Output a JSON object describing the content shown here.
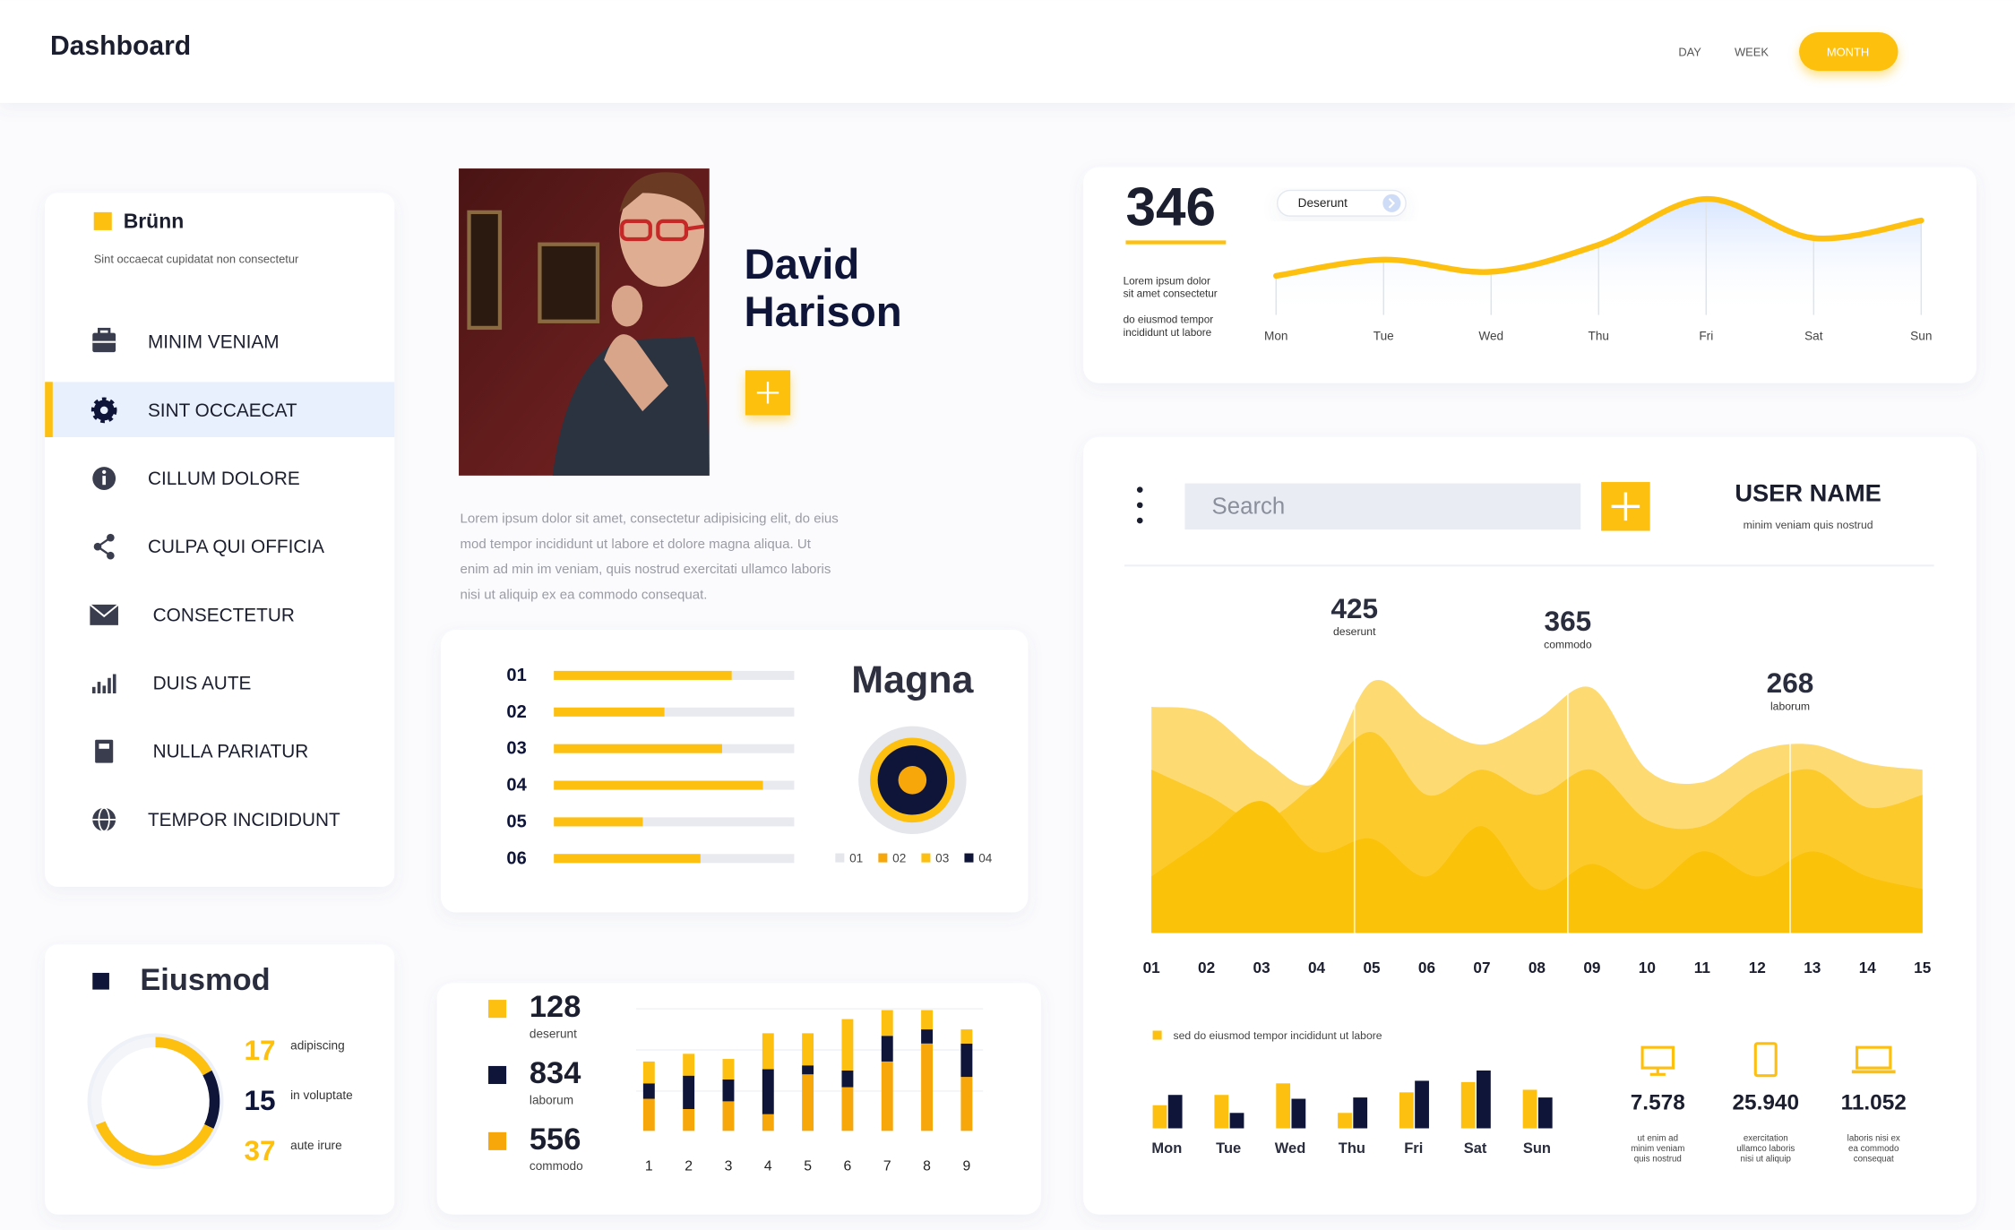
{
  "header": {
    "title": "Dashboard",
    "accent": "#fdc010",
    "tabs": [
      {
        "label": "DAY"
      },
      {
        "label": "WEEK"
      },
      {
        "label": "MONTH",
        "active": true
      }
    ]
  },
  "sidebar": {
    "title": "Brünn",
    "subtitle": "Sint occaecat cupidatat non consectetur",
    "items": [
      {
        "label": "MINIM VENIAM"
      },
      {
        "label": "SINT OCCAECAT",
        "active": true
      },
      {
        "label": "CILLUM DOLORE"
      },
      {
        "label": "CULPA QUI OFFICIA"
      },
      {
        "label": "CONSECTETUR"
      },
      {
        "label": "DUIS AUTE"
      },
      {
        "label": "NULLA PARIATUR"
      },
      {
        "label": "TEMPOR INCIDIDUNT"
      }
    ]
  },
  "eiusmod": {
    "type": "donut",
    "title": "Eiusmod",
    "lim": [
      0,
      100
    ],
    "items": [
      {
        "value": 17,
        "label": "adipiscing",
        "color": "#fdc010"
      },
      {
        "value": 15,
        "label": "in voluptate",
        "color": "#0e1538"
      },
      {
        "value": 37,
        "label": "aute irure",
        "color": "#fdc010"
      }
    ]
  },
  "profile": {
    "name_lines": [
      "David",
      "Harison"
    ],
    "description_lines": [
      "Lorem ipsum dolor sit amet, consectetur adipisicing elit, do eius",
      "mod tempor incididunt ut labore et dolore magna aliqua. Ut",
      "enim ad min  im veniam, quis nostrud exercitati ullamco laboris",
      "nisi ut aliquip ex ea commodo consequat."
    ]
  },
  "magna": {
    "type": "progress",
    "title": "Magna",
    "categories": [
      "01",
      "02",
      "03",
      "04",
      "05",
      "06"
    ],
    "values": [
      74,
      46,
      70,
      87,
      37,
      61
    ],
    "xlim": [
      0,
      100
    ],
    "color": "#fdc010",
    "track_color": "#e8eaef",
    "legend": [
      {
        "name": "01",
        "color": "#e4e6eb"
      },
      {
        "name": "02",
        "color": "#f7a70a"
      },
      {
        "name": "03",
        "color": "#fdc010"
      },
      {
        "name": "04",
        "color": "#0e1538"
      }
    ]
  },
  "stacked": {
    "type": "stacked_bar",
    "categories": [
      "1",
      "2",
      "3",
      "4",
      "5",
      "6",
      "7",
      "8",
      "9"
    ],
    "ylim": [
      0,
      100
    ],
    "series": [
      {
        "name": "commodo",
        "total": 556,
        "color": "#f7a70a",
        "values": [
          25,
          17,
          23,
          13,
          44,
          34,
          54,
          68,
          42
        ]
      },
      {
        "name": "laborum",
        "total": 834,
        "color": "#0e1538",
        "values": [
          12,
          26,
          17,
          35,
          7,
          13,
          20,
          11,
          26
        ]
      },
      {
        "name": "deserunt",
        "total": 128,
        "color": "#fdc010",
        "values": [
          17,
          17,
          16,
          28,
          25,
          40,
          20,
          15,
          11
        ]
      }
    ]
  },
  "trend": {
    "type": "line",
    "headline": 346,
    "notes": [
      [
        "Lorem ipsum dolor",
        "sit amet consectetur"
      ],
      [
        "do eiusmod tempor",
        "incididunt ut labore"
      ]
    ],
    "badge": "Deserunt",
    "categories": [
      "Mon",
      "Tue",
      "Wed",
      "Thu",
      "Fri",
      "Sat",
      "Sun"
    ],
    "values": [
      29,
      41,
      32,
      52,
      86,
      57,
      70
    ],
    "ylim": [
      0,
      100
    ],
    "color": "#fdc010"
  },
  "panel": {
    "search_placeholder": "Search",
    "user_name": "USER NAME",
    "user_caption": "minim veniam quis nostrud"
  },
  "area": {
    "type": "area",
    "categories": [
      "01",
      "02",
      "03",
      "04",
      "05",
      "06",
      "07",
      "08",
      "09",
      "10",
      "11",
      "12",
      "13",
      "14",
      "15"
    ],
    "ylim": [
      0,
      450
    ],
    "series": [
      {
        "color": "#fedb72",
        "values": [
          360,
          350,
          280,
          240,
          400,
          340,
          300,
          340,
          390,
          260,
          240,
          290,
          300,
          270,
          260
        ]
      },
      {
        "color": "#fdca2c",
        "values": [
          260,
          220,
          180,
          240,
          320,
          220,
          260,
          220,
          260,
          180,
          170,
          230,
          260,
          200,
          220
        ]
      },
      {
        "color": "#fbc20a",
        "values": [
          90,
          150,
          210,
          130,
          150,
          90,
          170,
          70,
          110,
          70,
          130,
          90,
          130,
          90,
          70
        ]
      }
    ],
    "annotations": [
      {
        "value": 425,
        "label": "deserunt"
      },
      {
        "value": 365,
        "label": "commodo"
      },
      {
        "value": 268,
        "label": "laborum"
      }
    ]
  },
  "weekly": {
    "type": "grouped_bar",
    "categories": [
      "Mon",
      "Tue",
      "Wed",
      "Thu",
      "Fri",
      "Sat",
      "Sun"
    ],
    "ylim": [
      0,
      50
    ],
    "series": [
      {
        "name": "sed do eiusmod tempor incididunt ut labore",
        "color": "#fdc010",
        "values": [
          18,
          26,
          35,
          12,
          28,
          36,
          30
        ]
      },
      {
        "color": "#0e1538",
        "values": [
          26,
          12,
          23,
          24,
          37,
          45,
          24
        ]
      }
    ]
  },
  "stats": [
    {
      "value": "7.578",
      "caption_lines": [
        "ut enim ad",
        "minim veniam",
        "quis nostrud"
      ]
    },
    {
      "value": "25.940",
      "caption_lines": [
        "exercitation",
        "ullamco laboris",
        "nisi ut aliquip"
      ]
    },
    {
      "value": "11.052",
      "caption_lines": [
        "laboris nisi ex",
        "ea commodo",
        "consequat"
      ]
    }
  ]
}
